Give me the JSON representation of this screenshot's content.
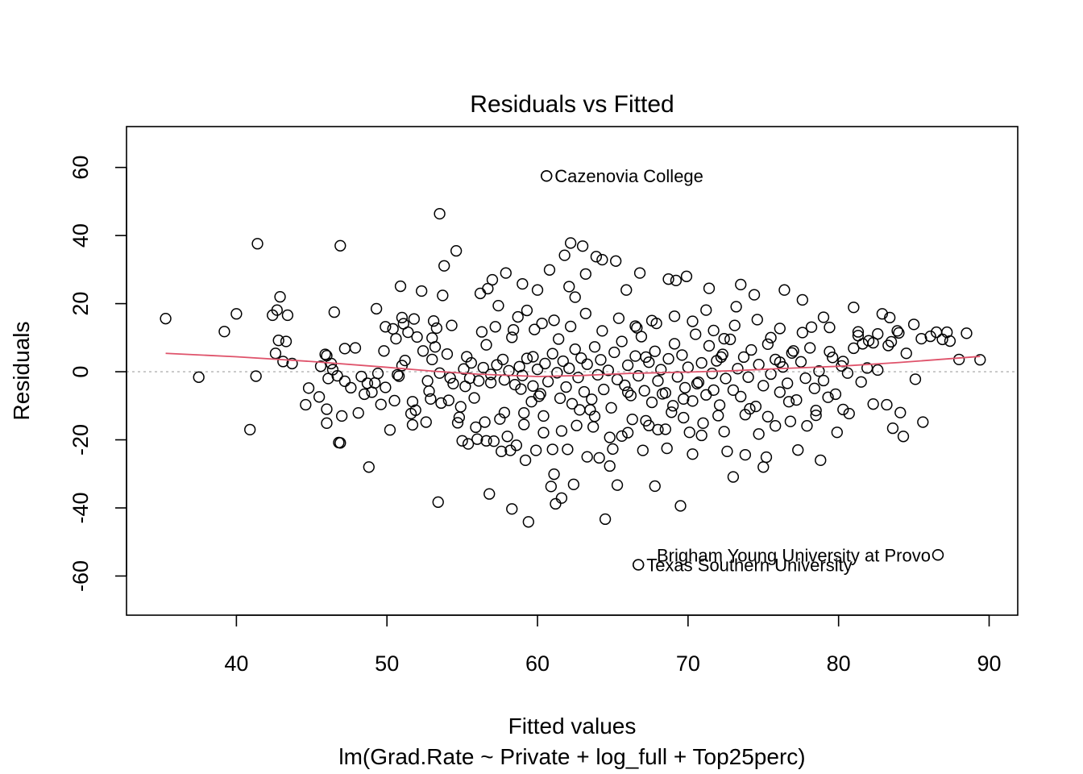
{
  "chart_data": {
    "type": "scatter",
    "title": "Residuals vs Fitted",
    "xlabel": "Fitted values",
    "ylabel": "Residuals",
    "subtitle": "lm(Grad.Rate ~ Private + log_full + Top25perc)",
    "xlim": [
      32.7,
      91.9
    ],
    "ylim": [
      -71.5,
      72
    ],
    "xticks": [
      40,
      50,
      60,
      70,
      80,
      90
    ],
    "yticks": [
      -60,
      -40,
      -20,
      0,
      20,
      40,
      60
    ],
    "reference_line": 0,
    "grid": false,
    "colors": {
      "points": "#000000",
      "smoother": "#df536b",
      "reference": "#bebebe"
    },
    "labeled_points": [
      {
        "x": 60.6,
        "y": 57.5,
        "label": "Cazenovia College"
      },
      {
        "x": 86.6,
        "y": -53.8,
        "label": "Brigham Young University at Provo"
      },
      {
        "x": 66.7,
        "y": -56.7,
        "label": "Texas Southern University"
      }
    ],
    "points": [
      [
        35.3,
        15.6
      ],
      [
        37.5,
        -1.6
      ],
      [
        39.2,
        11.8
      ],
      [
        40.0,
        17.0
      ],
      [
        40.9,
        -17.0
      ],
      [
        41.3,
        -1.3
      ],
      [
        41.4,
        37.6
      ],
      [
        42.4,
        16.6
      ],
      [
        42.6,
        5.4
      ],
      [
        42.7,
        18.1
      ],
      [
        42.8,
        9.2
      ],
      [
        42.9,
        22.0
      ],
      [
        43.1,
        3.0
      ],
      [
        43.3,
        8.9
      ],
      [
        43.4,
        16.6
      ],
      [
        43.7,
        2.4
      ],
      [
        44.6,
        -9.7
      ],
      [
        44.8,
        -4.8
      ],
      [
        45.5,
        -7.4
      ],
      [
        45.6,
        1.6
      ],
      [
        45.9,
        5.1
      ],
      [
        46.0,
        4.7
      ],
      [
        46.0,
        -11.0
      ],
      [
        46.0,
        -15.1
      ],
      [
        46.1,
        -2.0
      ],
      [
        46.3,
        2.4
      ],
      [
        46.4,
        0.6
      ],
      [
        46.5,
        17.5
      ],
      [
        46.7,
        -1.2
      ],
      [
        46.8,
        -20.8
      ],
      [
        46.9,
        -20.9
      ],
      [
        46.9,
        37.0
      ],
      [
        47.0,
        -13.0
      ],
      [
        47.2,
        6.8
      ],
      [
        47.2,
        -2.8
      ],
      [
        47.6,
        -4.7
      ],
      [
        47.9,
        7.0
      ],
      [
        48.1,
        -12.1
      ],
      [
        48.3,
        -1.4
      ],
      [
        48.5,
        -6.6
      ],
      [
        48.7,
        -3.4
      ],
      [
        48.8,
        -28.0
      ],
      [
        49.0,
        -6.0
      ],
      [
        49.2,
        -3.3
      ],
      [
        49.3,
        18.5
      ],
      [
        49.4,
        -0.5
      ],
      [
        49.6,
        -9.6
      ],
      [
        49.8,
        6.1
      ],
      [
        49.9,
        13.2
      ],
      [
        50.2,
        -17.1
      ],
      [
        50.4,
        12.6
      ],
      [
        50.6,
        9.7
      ],
      [
        50.7,
        -0.9
      ],
      [
        50.8,
        -1.3
      ],
      [
        50.9,
        25.1
      ],
      [
        51.0,
        1.8
      ],
      [
        51.0,
        15.9
      ],
      [
        51.1,
        14.1
      ],
      [
        51.4,
        11.6
      ],
      [
        51.6,
        -12.3
      ],
      [
        51.7,
        -15.6
      ],
      [
        51.7,
        -8.8
      ],
      [
        51.8,
        15.5
      ],
      [
        52.0,
        10.2
      ],
      [
        52.3,
        23.7
      ],
      [
        52.6,
        -14.8
      ],
      [
        52.7,
        -2.7
      ],
      [
        52.9,
        -8.0
      ],
      [
        53.0,
        9.9
      ],
      [
        53.0,
        3.6
      ],
      [
        53.1,
        14.9
      ],
      [
        53.2,
        7.3
      ],
      [
        53.3,
        12.8
      ],
      [
        53.4,
        -38.3
      ],
      [
        53.5,
        46.4
      ],
      [
        53.5,
        -0.4
      ],
      [
        53.7,
        22.4
      ],
      [
        53.8,
        31.1
      ],
      [
        54.0,
        5.2
      ],
      [
        54.1,
        -8.4
      ],
      [
        54.3,
        13.6
      ],
      [
        54.4,
        -3.5
      ],
      [
        54.6,
        35.5
      ],
      [
        54.7,
        -15.0
      ],
      [
        54.9,
        -10.3
      ],
      [
        55.0,
        -20.3
      ],
      [
        55.2,
        -4.3
      ],
      [
        55.4,
        -21.2
      ],
      [
        55.6,
        2.6
      ],
      [
        55.8,
        -7.7
      ],
      [
        56.0,
        -19.8
      ],
      [
        56.1,
        -2.7
      ],
      [
        56.2,
        23.0
      ],
      [
        56.3,
        11.7
      ],
      [
        56.5,
        -14.8
      ],
      [
        56.6,
        -20.3
      ],
      [
        56.7,
        24.4
      ],
      [
        56.8,
        -35.9
      ],
      [
        56.9,
        -3.2
      ],
      [
        57.0,
        27.0
      ],
      [
        57.1,
        -20.4
      ],
      [
        57.2,
        13.2
      ],
      [
        57.4,
        19.4
      ],
      [
        57.6,
        -23.4
      ],
      [
        57.7,
        3.6
      ],
      [
        57.8,
        -12.0
      ],
      [
        57.9,
        29.0
      ],
      [
        58.0,
        -19.0
      ],
      [
        58.2,
        -23.1
      ],
      [
        58.3,
        -40.3
      ],
      [
        58.4,
        12.3
      ],
      [
        58.6,
        -21.6
      ],
      [
        58.7,
        16.1
      ],
      [
        58.9,
        -5.1
      ],
      [
        59.0,
        25.8
      ],
      [
        59.1,
        -12.1
      ],
      [
        59.2,
        -26.0
      ],
      [
        59.3,
        18.0
      ],
      [
        59.4,
        -44.1
      ],
      [
        59.6,
        -8.8
      ],
      [
        59.7,
        4.4
      ],
      [
        59.9,
        -23.1
      ],
      [
        60.0,
        24.0
      ],
      [
        60.1,
        -7.2
      ],
      [
        60.3,
        14.2
      ],
      [
        60.4,
        -17.9
      ],
      [
        60.6,
        57.5
      ],
      [
        60.8,
        29.9
      ],
      [
        60.9,
        -33.7
      ],
      [
        61.0,
        -22.8
      ],
      [
        61.1,
        -30.1
      ],
      [
        61.2,
        -38.8
      ],
      [
        61.4,
        9.6
      ],
      [
        61.6,
        -37.1
      ],
      [
        61.8,
        34.2
      ],
      [
        62.0,
        -22.8
      ],
      [
        62.1,
        25.0
      ],
      [
        62.2,
        37.8
      ],
      [
        62.4,
        -33.1
      ],
      [
        62.5,
        21.9
      ],
      [
        62.8,
        -11.2
      ],
      [
        63.0,
        36.9
      ],
      [
        63.2,
        28.7
      ],
      [
        63.3,
        -25.0
      ],
      [
        63.5,
        -11.2
      ],
      [
        63.8,
        -13.1
      ],
      [
        63.9,
        33.8
      ],
      [
        64.1,
        -25.3
      ],
      [
        64.3,
        32.9
      ],
      [
        64.5,
        -43.3
      ],
      [
        64.8,
        -27.7
      ],
      [
        65.0,
        -22.7
      ],
      [
        65.2,
        32.5
      ],
      [
        65.3,
        -33.3
      ],
      [
        65.6,
        -18.9
      ],
      [
        65.9,
        24.0
      ],
      [
        66.0,
        -6.0
      ],
      [
        66.3,
        -14.0
      ],
      [
        66.5,
        13.4
      ],
      [
        66.7,
        -56.7
      ],
      [
        66.8,
        29.0
      ],
      [
        67.0,
        -23.1
      ],
      [
        67.2,
        4.3
      ],
      [
        67.4,
        -15.8
      ],
      [
        67.6,
        15.0
      ],
      [
        67.8,
        -33.6
      ],
      [
        68.0,
        -17.0
      ],
      [
        68.3,
        -6.5
      ],
      [
        68.6,
        -22.5
      ],
      [
        68.7,
        27.2
      ],
      [
        69.0,
        -10.0
      ],
      [
        69.2,
        26.8
      ],
      [
        69.5,
        -39.4
      ],
      [
        69.7,
        -8.0
      ],
      [
        69.9,
        28.0
      ],
      [
        70.1,
        -17.8
      ],
      [
        70.3,
        -24.2
      ],
      [
        70.6,
        -3.5
      ],
      [
        70.9,
        -18.7
      ],
      [
        71.2,
        18.1
      ],
      [
        71.4,
        24.5
      ],
      [
        71.7,
        -5.4
      ],
      [
        72.0,
        -12.9
      ],
      [
        72.2,
        4.3
      ],
      [
        72.4,
        9.7
      ],
      [
        72.6,
        -23.4
      ],
      [
        73.0,
        -30.9
      ],
      [
        73.2,
        19.1
      ],
      [
        73.5,
        25.6
      ],
      [
        73.8,
        -24.4
      ],
      [
        74.1,
        -10.9
      ],
      [
        74.4,
        22.6
      ],
      [
        74.7,
        -18.3
      ],
      [
        75.0,
        -28.0
      ],
      [
        75.2,
        -25.1
      ],
      [
        75.5,
        10.0
      ],
      [
        75.8,
        -15.9
      ],
      [
        76.1,
        2.8
      ],
      [
        76.4,
        24.0
      ],
      [
        76.7,
        -8.8
      ],
      [
        77.0,
        6.1
      ],
      [
        77.3,
        -23.0
      ],
      [
        77.6,
        21.1
      ],
      [
        77.9,
        -15.9
      ],
      [
        78.2,
        13.1
      ],
      [
        78.5,
        -11.4
      ],
      [
        78.8,
        -26.0
      ],
      [
        79.0,
        16.0
      ],
      [
        79.3,
        -7.5
      ],
      [
        79.6,
        4.2
      ],
      [
        79.9,
        -17.8
      ],
      [
        80.3,
        3.0
      ],
      [
        80.7,
        -12.3
      ],
      [
        81.0,
        18.9
      ],
      [
        81.3,
        11.7
      ],
      [
        81.6,
        8.2
      ],
      [
        81.9,
        1.1
      ],
      [
        82.3,
        8.5
      ],
      [
        82.6,
        11.1
      ],
      [
        82.9,
        17.0
      ],
      [
        83.2,
        -9.7
      ],
      [
        83.4,
        15.9
      ],
      [
        83.6,
        -16.6
      ],
      [
        83.9,
        12.0
      ],
      [
        84.1,
        -12.0
      ],
      [
        84.3,
        -19.0
      ],
      [
        84.5,
        5.4
      ],
      [
        85.0,
        13.9
      ],
      [
        85.1,
        -2.2
      ],
      [
        85.5,
        9.7
      ],
      [
        85.6,
        -14.8
      ],
      [
        86.1,
        10.4
      ],
      [
        86.5,
        11.6
      ],
      [
        86.6,
        -53.8
      ],
      [
        86.9,
        9.5
      ],
      [
        87.2,
        11.6
      ],
      [
        87.4,
        9.0
      ],
      [
        88.0,
        3.6
      ],
      [
        88.5,
        11.3
      ],
      [
        89.4,
        3.5
      ],
      [
        55.1,
        0.8
      ],
      [
        55.5,
        -1.9
      ],
      [
        56.4,
        1.2
      ],
      [
        56.9,
        -0.8
      ],
      [
        57.3,
        2.0
      ],
      [
        57.8,
        -2.4
      ],
      [
        58.1,
        0.3
      ],
      [
        58.5,
        -3.8
      ],
      [
        58.8,
        1.5
      ],
      [
        59.0,
        -1.1
      ],
      [
        59.3,
        3.9
      ],
      [
        59.7,
        -4.2
      ],
      [
        60.0,
        0.7
      ],
      [
        60.2,
        -6.5
      ],
      [
        60.5,
        2.4
      ],
      [
        60.7,
        -2.9
      ],
      [
        61.0,
        5.3
      ],
      [
        61.3,
        -0.3
      ],
      [
        61.5,
        -7.8
      ],
      [
        61.7,
        3.1
      ],
      [
        61.9,
        -4.5
      ],
      [
        62.1,
        1.0
      ],
      [
        62.3,
        -9.4
      ],
      [
        62.5,
        6.6
      ],
      [
        62.7,
        -1.7
      ],
      [
        62.9,
        4.0
      ],
      [
        63.1,
        -5.9
      ],
      [
        63.3,
        2.2
      ],
      [
        63.6,
        -8.1
      ],
      [
        63.8,
        7.3
      ],
      [
        64.0,
        -0.9
      ],
      [
        64.2,
        3.5
      ],
      [
        64.4,
        -5.2
      ],
      [
        64.7,
        0.4
      ],
      [
        64.9,
        -10.6
      ],
      [
        65.1,
        5.7
      ],
      [
        65.3,
        -2.3
      ],
      [
        65.6,
        8.9
      ],
      [
        65.8,
        -4.0
      ],
      [
        66.0,
        1.9
      ],
      [
        66.2,
        -7.0
      ],
      [
        66.5,
        4.6
      ],
      [
        66.7,
        -1.2
      ],
      [
        66.9,
        10.3
      ],
      [
        67.1,
        -5.6
      ],
      [
        67.4,
        2.8
      ],
      [
        67.6,
        -9.0
      ],
      [
        67.8,
        6.0
      ],
      [
        68.0,
        -2.7
      ],
      [
        68.2,
        0.6
      ],
      [
        68.5,
        -6.2
      ],
      [
        68.7,
        3.8
      ],
      [
        68.9,
        -11.9
      ],
      [
        69.1,
        8.2
      ],
      [
        69.3,
        -1.5
      ],
      [
        69.6,
        4.9
      ],
      [
        69.8,
        -4.7
      ],
      [
        70.0,
        1.3
      ],
      [
        70.3,
        -8.6
      ],
      [
        70.5,
        11.0
      ],
      [
        70.7,
        -3.1
      ],
      [
        70.9,
        2.6
      ],
      [
        71.2,
        -6.8
      ],
      [
        71.4,
        7.6
      ],
      [
        71.6,
        -0.5
      ],
      [
        71.9,
        3.2
      ],
      [
        72.1,
        -9.8
      ],
      [
        72.3,
        5.1
      ],
      [
        72.5,
        -2.0
      ],
      [
        72.8,
        9.5
      ],
      [
        73.0,
        -5.4
      ],
      [
        73.3,
        0.9
      ],
      [
        73.5,
        -7.3
      ],
      [
        73.7,
        4.3
      ],
      [
        74.0,
        -1.6
      ],
      [
        74.2,
        6.4
      ],
      [
        74.5,
        -10.2
      ],
      [
        74.7,
        2.1
      ],
      [
        75.0,
        -4.1
      ],
      [
        75.3,
        8.1
      ],
      [
        75.5,
        -0.7
      ],
      [
        75.8,
        3.6
      ],
      [
        76.1,
        -6.0
      ],
      [
        76.3,
        1.4
      ],
      [
        76.6,
        -3.4
      ],
      [
        76.9,
        5.5
      ],
      [
        77.2,
        -8.3
      ],
      [
        77.5,
        2.9
      ],
      [
        77.8,
        -1.9
      ],
      [
        78.1,
        7.0
      ],
      [
        78.4,
        -4.9
      ],
      [
        78.7,
        0.2
      ],
      [
        79.0,
        -2.6
      ],
      [
        79.4,
        5.9
      ],
      [
        79.8,
        -6.6
      ],
      [
        80.2,
        1.7
      ],
      [
        80.6,
        -0.4
      ],
      [
        81.0,
        6.9
      ],
      [
        81.5,
        -3.0
      ],
      [
        82.0,
        9.1
      ],
      [
        82.6,
        0.5
      ],
      [
        83.3,
        7.7
      ],
      [
        84.0,
        11.4
      ],
      [
        49.9,
        -4.6
      ],
      [
        50.5,
        -8.5
      ],
      [
        51.2,
        3.3
      ],
      [
        51.9,
        -11.3
      ],
      [
        52.4,
        6.1
      ],
      [
        52.8,
        -5.7
      ],
      [
        53.6,
        -9.2
      ],
      [
        54.2,
        -1.8
      ],
      [
        54.8,
        -13.4
      ],
      [
        55.3,
        4.4
      ],
      [
        55.9,
        -16.3
      ],
      [
        56.6,
        7.9
      ],
      [
        57.5,
        -13.9
      ],
      [
        58.3,
        10.1
      ],
      [
        59.1,
        -15.5
      ],
      [
        59.8,
        12.4
      ],
      [
        60.4,
        -13.0
      ],
      [
        61.1,
        15.1
      ],
      [
        61.6,
        -17.4
      ],
      [
        62.2,
        13.3
      ],
      [
        62.6,
        -15.8
      ],
      [
        63.2,
        17.1
      ],
      [
        63.7,
        -16.2
      ],
      [
        64.3,
        12.0
      ],
      [
        64.8,
        -19.3
      ],
      [
        65.4,
        15.7
      ],
      [
        66.0,
        -17.9
      ],
      [
        66.6,
        12.9
      ],
      [
        67.2,
        -14.4
      ],
      [
        67.9,
        14.2
      ],
      [
        68.5,
        -16.9
      ],
      [
        69.1,
        16.3
      ],
      [
        69.7,
        -13.5
      ],
      [
        70.3,
        14.8
      ],
      [
        71.0,
        -15.1
      ],
      [
        71.7,
        12.1
      ],
      [
        72.4,
        -17.6
      ],
      [
        73.1,
        13.6
      ],
      [
        73.8,
        -12.6
      ],
      [
        74.6,
        15.3
      ],
      [
        75.3,
        -13.2
      ],
      [
        76.1,
        12.7
      ],
      [
        76.8,
        -14.6
      ],
      [
        77.6,
        11.5
      ],
      [
        78.5,
        -12.8
      ],
      [
        79.4,
        13.0
      ],
      [
        80.3,
        -11.1
      ],
      [
        81.3,
        10.6
      ],
      [
        82.3,
        -9.5
      ],
      [
        83.5,
        8.8
      ]
    ],
    "smoother": [
      [
        35.3,
        5.4
      ],
      [
        40,
        4.4
      ],
      [
        45,
        3.0
      ],
      [
        50,
        1.3
      ],
      [
        53,
        0.2
      ],
      [
        56,
        -0.7
      ],
      [
        60,
        -1.4
      ],
      [
        63,
        -1.1
      ],
      [
        66,
        -0.5
      ],
      [
        70,
        -0.1
      ],
      [
        73,
        0.3
      ],
      [
        76,
        0.9
      ],
      [
        80,
        1.6
      ],
      [
        84,
        2.7
      ],
      [
        87,
        3.7
      ],
      [
        89.4,
        4.5
      ]
    ]
  }
}
